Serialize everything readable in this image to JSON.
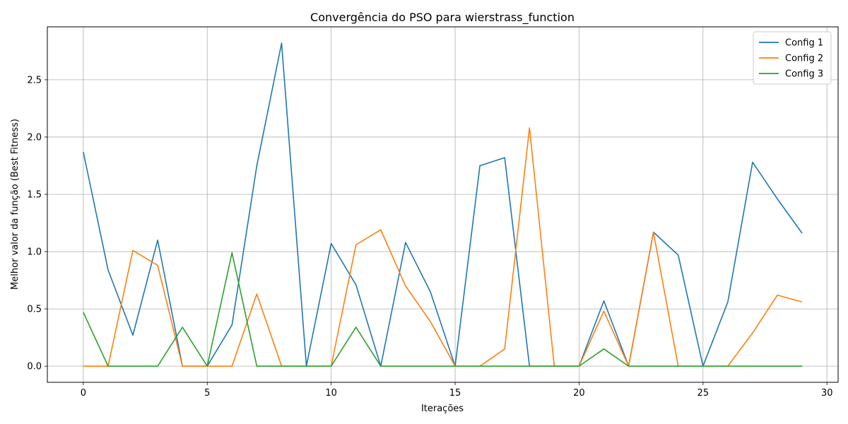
{
  "chart_data": {
    "type": "line",
    "title": "Convergência do PSO para wierstrass_function",
    "xlabel": "Iterações",
    "ylabel": "Melhor valor da função (Best Fitness)",
    "xlim": [
      -1.45,
      30.45
    ],
    "ylim": [
      -0.141,
      2.962
    ],
    "xticks": [
      0,
      5,
      10,
      15,
      20,
      25,
      30
    ],
    "yticks": [
      0.0,
      0.5,
      1.0,
      1.5,
      2.0,
      2.5
    ],
    "xtick_labels": [
      "0",
      "5",
      "10",
      "15",
      "20",
      "25",
      "30"
    ],
    "ytick_labels": [
      "0.0",
      "0.5",
      "1.0",
      "1.5",
      "2.0",
      "2.5"
    ],
    "grid": true,
    "legend_position": "top-right",
    "x": [
      0,
      1,
      2,
      3,
      4,
      5,
      6,
      7,
      8,
      9,
      10,
      11,
      12,
      13,
      14,
      15,
      16,
      17,
      18,
      19,
      20,
      21,
      22,
      23,
      24,
      25,
      26,
      27,
      28,
      29
    ],
    "series": [
      {
        "name": "Config 1",
        "color": "#1f77b4",
        "values": [
          1.87,
          0.84,
          0.27,
          1.1,
          0.0,
          0.0,
          0.36,
          1.75,
          2.82,
          0.0,
          1.07,
          0.71,
          0.0,
          1.08,
          0.65,
          0.0,
          1.75,
          1.82,
          0.0,
          0.0,
          0.0,
          0.57,
          0.0,
          1.17,
          0.97,
          0.0,
          0.56,
          1.78,
          1.46,
          1.16
        ]
      },
      {
        "name": "Config 2",
        "color": "#ff7f0e",
        "values": [
          0.0,
          0.0,
          1.01,
          0.88,
          0.0,
          0.0,
          0.0,
          0.63,
          0.0,
          0.0,
          0.0,
          1.06,
          1.19,
          0.7,
          0.39,
          0.0,
          0.0,
          0.15,
          2.08,
          0.0,
          0.0,
          0.48,
          0.0,
          1.17,
          0.0,
          0.0,
          0.0,
          0.29,
          0.62,
          0.56
        ]
      },
      {
        "name": "Config 3",
        "color": "#2ca02c",
        "values": [
          0.47,
          0.0,
          0.0,
          0.0,
          0.34,
          0.0,
          0.99,
          0.0,
          0.0,
          0.0,
          0.0,
          0.34,
          0.0,
          0.0,
          0.0,
          0.0,
          0.0,
          0.0,
          0.0,
          0.0,
          0.0,
          0.15,
          0.0,
          0.0,
          0.0,
          0.0,
          0.0,
          0.0,
          0.0,
          0.0
        ]
      }
    ]
  }
}
